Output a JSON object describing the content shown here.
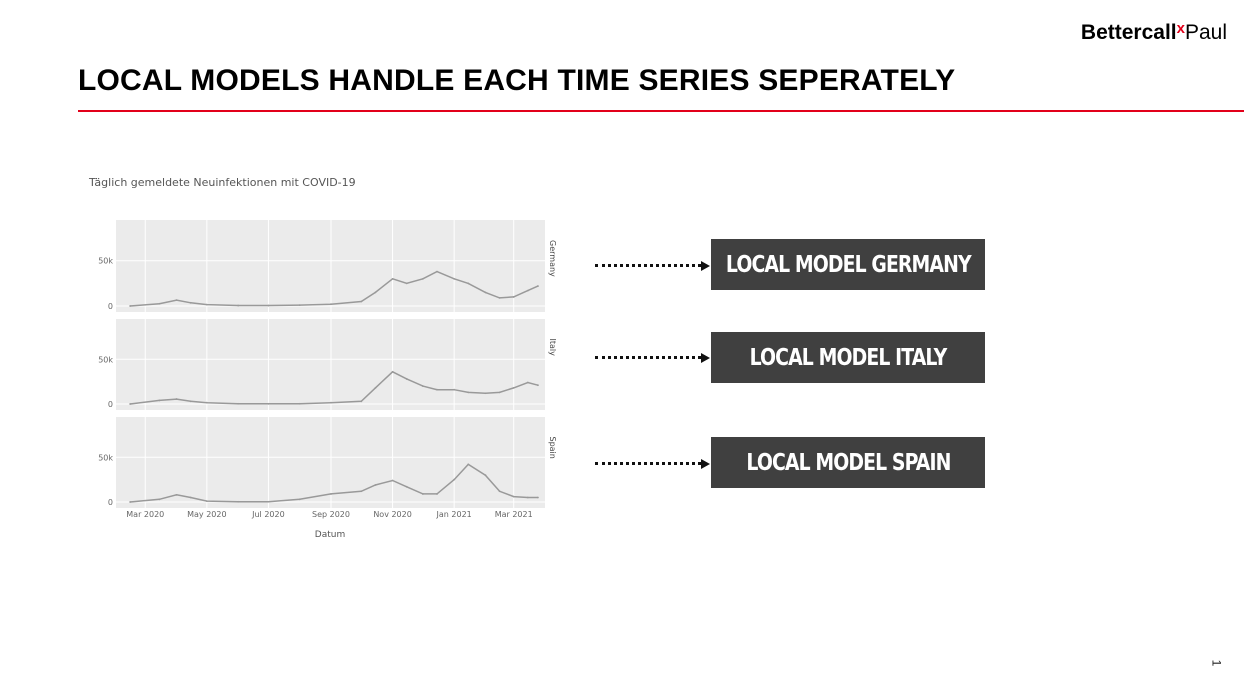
{
  "logo": {
    "part1": "Bettercall",
    "x": "x",
    "part2": "Paul"
  },
  "slide_title": "LOCAL MODELS HANDLE EACH TIME SERIES SEPERATELY",
  "models": [
    {
      "label": "LOCAL MODEL GERMANY"
    },
    {
      "label": "LOCAL MODEL ITALY"
    },
    {
      "label": "LOCAL MODEL SPAIN"
    }
  ],
  "page_number": "1",
  "colors": {
    "accent": "#e2001a",
    "box": "#404040",
    "plot_bg": "#ebebeb",
    "line": "#999999"
  },
  "chart_data": {
    "type": "line",
    "title": "Täglich gemeldete Neuinfektionen mit COVID-19",
    "xlabel": "Datum",
    "ylabel": "",
    "grid": true,
    "xlim": [
      "2020-02-01",
      "2021-04-01"
    ],
    "ylim": [
      0,
      95000
    ],
    "x_ticks": [
      "Mar 2020",
      "May 2020",
      "Jul 2020",
      "Sep 2020",
      "Nov 2020",
      "Jan 2021",
      "Mar 2021"
    ],
    "y_ticks": [
      "0",
      "50k"
    ],
    "x": [
      "2020-02-15",
      "2020-03-15",
      "2020-04-01",
      "2020-04-15",
      "2020-05-01",
      "2020-06-01",
      "2020-07-01",
      "2020-08-01",
      "2020-09-01",
      "2020-10-01",
      "2020-10-15",
      "2020-11-01",
      "2020-11-15",
      "2020-12-01",
      "2020-12-15",
      "2021-01-01",
      "2021-01-15",
      "2021-02-01",
      "2021-02-15",
      "2021-03-01",
      "2021-03-15",
      "2021-03-25"
    ],
    "series": [
      {
        "name": "Germany",
        "values": [
          0,
          2500,
          6500,
          3500,
          1500,
          500,
          500,
          1000,
          2000,
          5000,
          15000,
          30000,
          25000,
          30000,
          38000,
          30000,
          25000,
          15000,
          9000,
          10000,
          17000,
          22000
        ]
      },
      {
        "name": "Italy",
        "values": [
          0,
          4000,
          5500,
          3000,
          1500,
          300,
          200,
          300,
          1500,
          3000,
          18000,
          36000,
          28000,
          20000,
          16000,
          16000,
          13000,
          12000,
          13000,
          18000,
          24000,
          21000
        ]
      },
      {
        "name": "Spain",
        "values": [
          0,
          3000,
          8000,
          5000,
          1000,
          300,
          300,
          3000,
          9000,
          12000,
          19000,
          24000,
          17000,
          9000,
          9000,
          25000,
          42000,
          30000,
          12000,
          6000,
          5000,
          5000
        ]
      }
    ]
  }
}
